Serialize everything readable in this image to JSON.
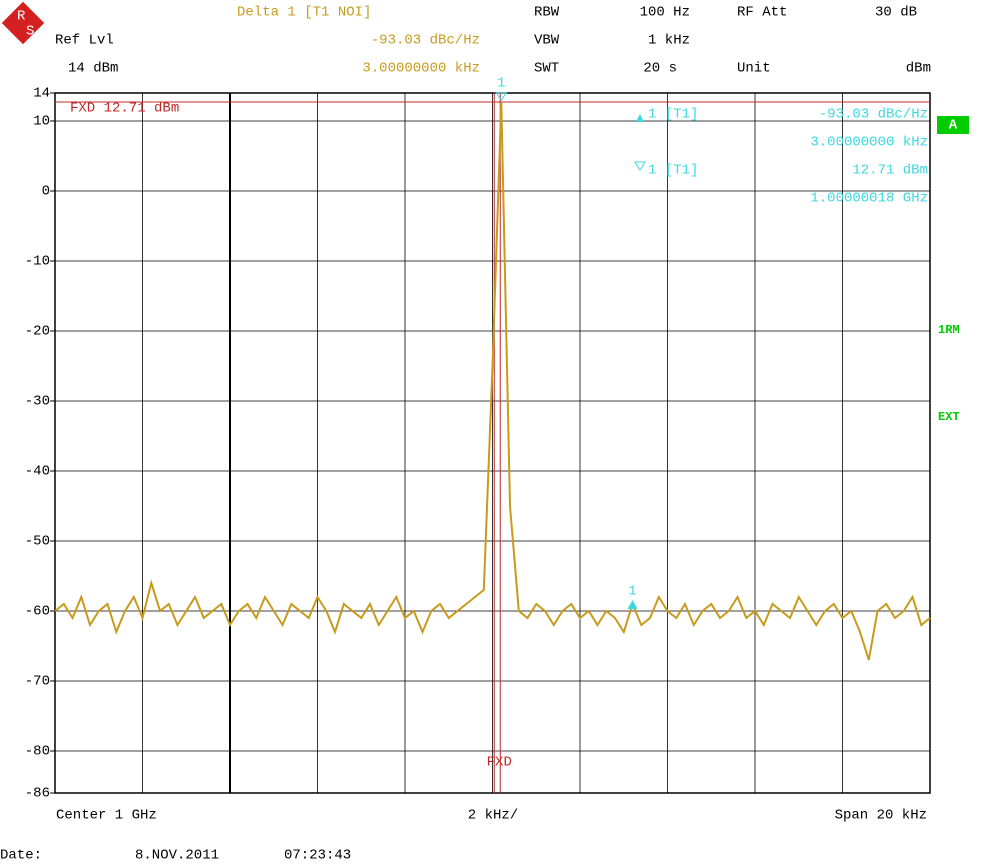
{
  "header": {
    "ref_lvl_label": "Ref Lvl",
    "ref_lvl": "14 dBm",
    "delta": "Delta 1 [T1 NOI]",
    "delta_level": "-93.03 dBc/Hz",
    "delta_freq": "3.00000000 kHz",
    "rbw_label": "RBW",
    "rbw": "100 Hz",
    "vbw_label": "VBW",
    "vbw": "1 kHz",
    "swt_label": "SWT",
    "swt": "20 s",
    "rf_att_label": "RF Att",
    "rf_att": "30 dB",
    "unit_label": "Unit",
    "unit": "dBm",
    "logo": [
      "R",
      "S"
    ]
  },
  "markers": {
    "delta_name": "1 [T1]",
    "delta_level": "-93.03 dBc/Hz",
    "delta_freq": "3.00000000 kHz",
    "t1_name": "1 [T1]",
    "t1_level": "12.71 dBm",
    "t1_freq": "1.00000018 GHz",
    "marker_number": "1"
  },
  "side_labels": [
    "A",
    "1RM",
    "EXT"
  ],
  "footer": {
    "center": "Center 1 GHz",
    "div": "2 kHz/",
    "span": "Span 20 kHz",
    "date_label": "Date:",
    "date": "8.NOV.2011",
    "time": "07:23:43"
  },
  "chart_data": {
    "type": "line",
    "color": "#c89a1c",
    "ylim": [
      -86,
      14
    ],
    "yticks": [
      14,
      10,
      0,
      -10,
      -20,
      -30,
      -40,
      -50,
      -60,
      -70,
      -80,
      -86
    ],
    "grid": true,
    "fxd_level": 12.71,
    "fxd_label": "FXD 12.71 dBm",
    "fxd_freq_label": "FXD",
    "values": [
      -60,
      -59,
      -61,
      -58,
      -62,
      -60,
      -59,
      -63,
      -60,
      -58,
      -61,
      -56,
      -60,
      -59,
      -62,
      -60,
      -58,
      -61,
      -60,
      -59,
      -62,
      -60,
      -59,
      -61,
      -58,
      -60,
      -62,
      -59,
      -60,
      -61,
      -58,
      -60,
      -63,
      -59,
      -60,
      -61,
      -59,
      -62,
      -60,
      -58,
      -61,
      -60,
      -63,
      -60,
      -59,
      -61,
      -60,
      -59,
      -58,
      -57,
      -25,
      12.71,
      -45,
      -60,
      -61,
      -59,
      -60,
      -62,
      -60,
      -59,
      -61,
      -60,
      -62,
      -60,
      -61,
      -63,
      -59,
      -62,
      -61,
      -58,
      -60,
      -61,
      -59,
      -62,
      -60,
      -59,
      -61,
      -60,
      -58,
      -61,
      -60,
      -62,
      -59,
      -60,
      -61,
      -58,
      -60,
      -62,
      -60,
      -59,
      -61,
      -60,
      -63,
      -67,
      -60,
      -59,
      -61,
      -60,
      -58,
      -62,
      -61
    ]
  }
}
